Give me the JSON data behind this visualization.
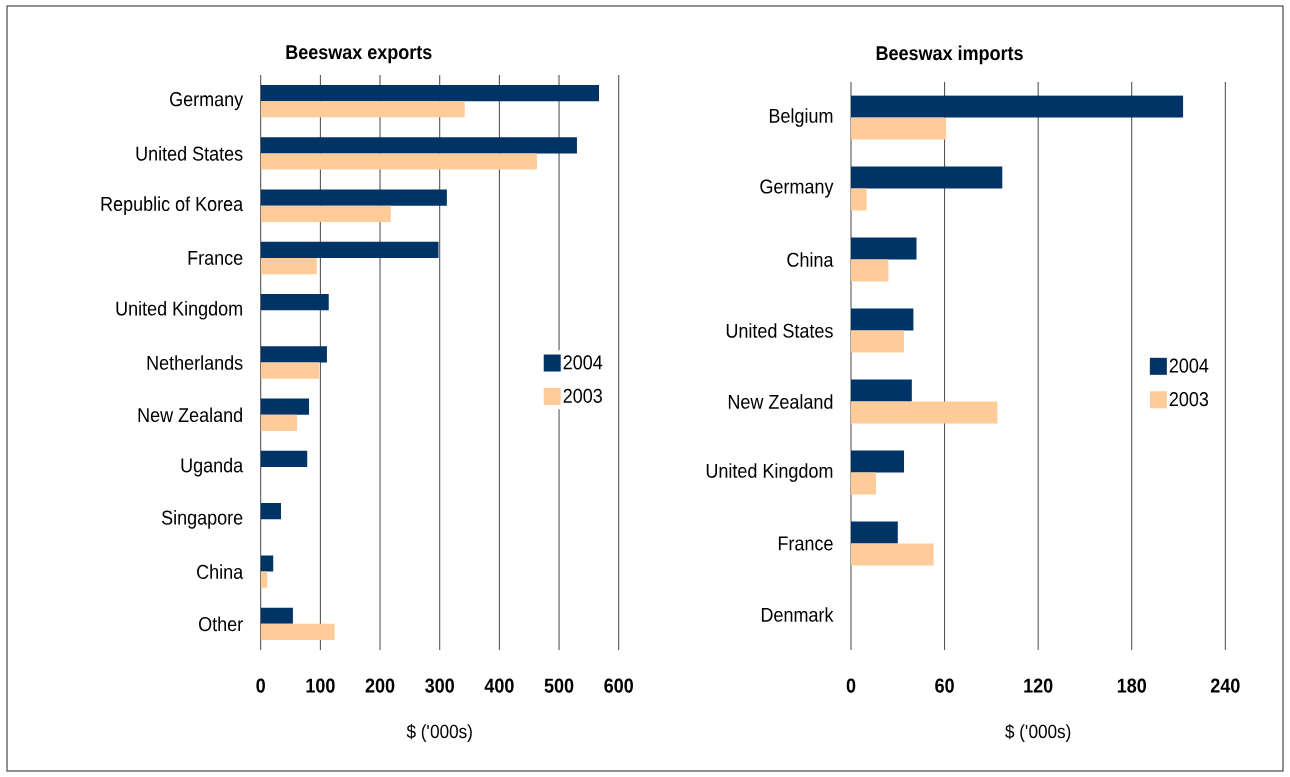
{
  "chart_data": [
    {
      "type": "bar",
      "orientation": "horizontal",
      "title": "Beeswax exports",
      "xlabel": "$ ('000s)",
      "categories": [
        "Germany",
        "United States",
        "Republic of Korea",
        "France",
        "United Kingdom",
        "Netherlands",
        "New Zealand",
        "Uganda",
        "Singapore",
        "China",
        "Other"
      ],
      "series": [
        {
          "name": "2004",
          "color": "#003366",
          "values": [
            567,
            530,
            312,
            298,
            114,
            111,
            81,
            78,
            34,
            21,
            54
          ]
        },
        {
          "name": "2003",
          "color": "#ffcc99",
          "values": [
            342,
            463,
            218,
            94,
            null,
            98,
            61,
            null,
            null,
            11,
            124
          ]
        }
      ],
      "xlim": [
        0,
        600
      ],
      "xticks": [
        0,
        100,
        200,
        300,
        400,
        500,
        600
      ],
      "grid": "x",
      "legend": "right"
    },
    {
      "type": "bar",
      "orientation": "horizontal",
      "title": "Beeswax imports",
      "xlabel": "$ ('000s)",
      "categories": [
        "Belgium",
        "Germany",
        "China",
        "United States",
        "New Zealand",
        "United Kingdom",
        "France",
        "Denmark"
      ],
      "series": [
        {
          "name": "2004",
          "color": "#003366",
          "values": [
            213,
            97,
            42,
            40,
            39,
            34,
            30,
            null
          ]
        },
        {
          "name": "2003",
          "color": "#ffcc99",
          "values": [
            61,
            10,
            24,
            34,
            94,
            16,
            53,
            null
          ]
        }
      ],
      "xlim": [
        0,
        240
      ],
      "xticks": [
        0,
        60,
        120,
        180,
        240
      ],
      "grid": "x",
      "legend": "right"
    }
  ]
}
